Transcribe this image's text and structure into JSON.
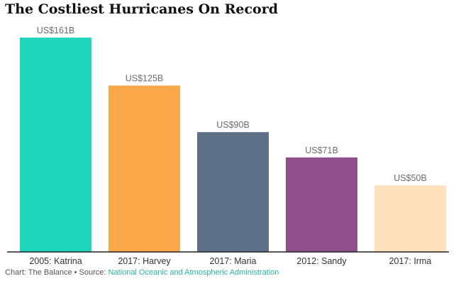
{
  "title": "The Costliest Hurricanes On Record",
  "footer": {
    "credit": "Chart: The Balance • Source:",
    "source_name": "National Oceanic and Atmospheric Administration"
  },
  "colors": {
    "accent": "#2bb3a3",
    "axis": "#222222"
  },
  "chart_data": {
    "type": "bar",
    "title": "The Costliest Hurricanes On Record",
    "xlabel": "",
    "ylabel": "",
    "ylim": [
      0,
      161
    ],
    "grid": false,
    "categories": [
      "2005: Katrina",
      "2017: Harvey",
      "2017: Maria",
      "2012: Sandy",
      "2017: Irma"
    ],
    "values": [
      161,
      125,
      90,
      71,
      50
    ],
    "value_labels": [
      "US$161B",
      "US$125B",
      "US$90B",
      "US$71B",
      "US$50B"
    ],
    "bar_colors": [
      "#1fd6bd",
      "#fba84a",
      "#5d7088",
      "#8f4f8b",
      "#fde0bc"
    ]
  }
}
